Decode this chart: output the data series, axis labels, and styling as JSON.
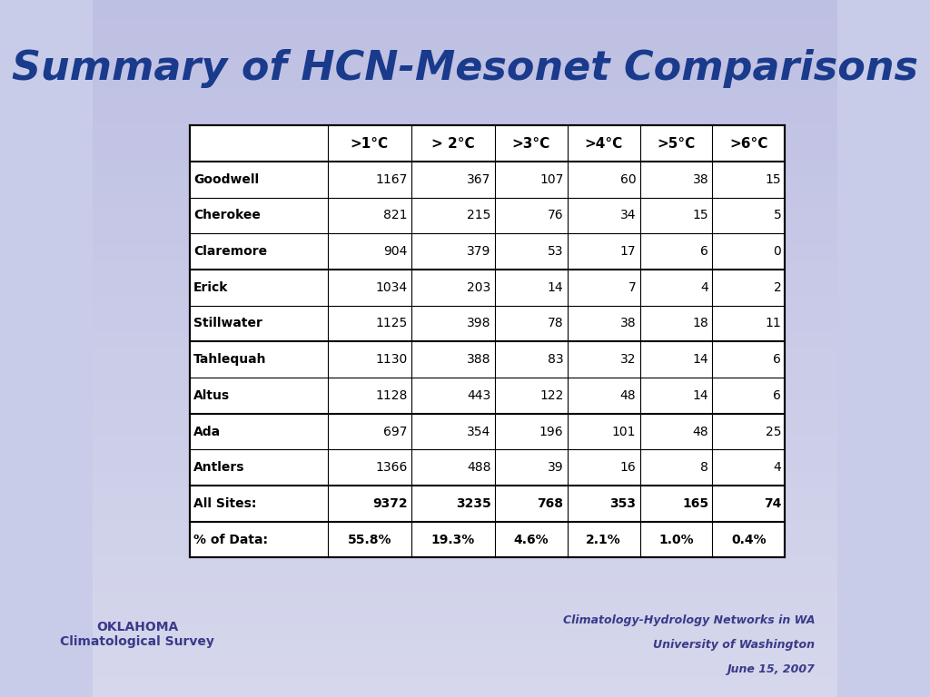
{
  "title": "Summary of HCN-Mesonet Comparisons",
  "title_color": "#1a3a8c",
  "title_fontsize": 32,
  "background_color_top": "#c8c8e8",
  "background_color_bottom": "#d8d8f0",
  "columns": [
    ">1°C",
    "> 2°C",
    ">3°C",
    ">4°C",
    ">5°C",
    ">6°C"
  ],
  "rows": [
    {
      "site": "Goodwell",
      "values": [
        1167,
        367,
        107,
        60,
        38,
        15
      ]
    },
    {
      "site": "Cherokee",
      "values": [
        821,
        215,
        76,
        34,
        15,
        5
      ]
    },
    {
      "site": "Claremore",
      "values": [
        904,
        379,
        53,
        17,
        6,
        0
      ]
    },
    {
      "site": "Erick",
      "values": [
        1034,
        203,
        14,
        7,
        4,
        2
      ]
    },
    {
      "site": "Stillwater",
      "values": [
        1125,
        398,
        78,
        38,
        18,
        11
      ]
    },
    {
      "site": "Tahlequah",
      "values": [
        1130,
        388,
        83,
        32,
        14,
        6
      ]
    },
    {
      "site": "Altus",
      "values": [
        1128,
        443,
        122,
        48,
        14,
        6
      ]
    },
    {
      "site": "Ada",
      "values": [
        697,
        354,
        196,
        101,
        48,
        25
      ]
    },
    {
      "site": "Antlers",
      "values": [
        1366,
        488,
        39,
        16,
        8,
        4
      ]
    }
  ],
  "totals": {
    "site": "All Sites:",
    "values": [
      9372,
      3235,
      768,
      353,
      165,
      74
    ]
  },
  "percents": {
    "site": "% of Data:",
    "values": [
      "55.8%",
      "19.3%",
      "4.6%",
      "2.1%",
      "1.0%",
      "0.4%"
    ]
  },
  "footer_right": [
    "Climatology-Hydrology Networks in WA",
    "University of Washington",
    "June 15, 2007"
  ],
  "footer_color": "#3a3a8a"
}
